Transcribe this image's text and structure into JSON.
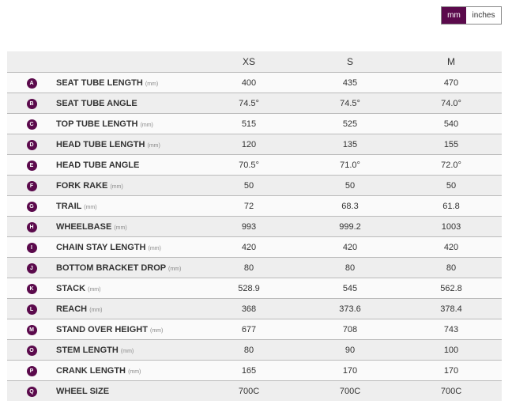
{
  "units": {
    "mm": "mm",
    "inches": "inches",
    "selected": "mm"
  },
  "accent": "#5b0a4c",
  "headers": [
    "XS",
    "S",
    "M"
  ],
  "rows": [
    {
      "letter": "A",
      "label": "SEAT TUBE LENGTH",
      "unit": "(mm)",
      "values": [
        "400",
        "435",
        "470"
      ]
    },
    {
      "letter": "B",
      "label": "SEAT TUBE ANGLE",
      "unit": "",
      "values": [
        "74.5°",
        "74.5°",
        "74.0°"
      ]
    },
    {
      "letter": "C",
      "label": "TOP TUBE LENGTH",
      "unit": "(mm)",
      "values": [
        "515",
        "525",
        "540"
      ]
    },
    {
      "letter": "D",
      "label": "HEAD TUBE LENGTH",
      "unit": "(mm)",
      "values": [
        "120",
        "135",
        "155"
      ]
    },
    {
      "letter": "E",
      "label": "HEAD TUBE ANGLE",
      "unit": "",
      "values": [
        "70.5°",
        "71.0°",
        "72.0°"
      ]
    },
    {
      "letter": "F",
      "label": "FORK RAKE",
      "unit": "(mm)",
      "values": [
        "50",
        "50",
        "50"
      ]
    },
    {
      "letter": "G",
      "label": "TRAIL",
      "unit": "(mm)",
      "values": [
        "72",
        "68.3",
        "61.8"
      ]
    },
    {
      "letter": "H",
      "label": "WHEELBASE",
      "unit": "(mm)",
      "values": [
        "993",
        "999.2",
        "1003"
      ]
    },
    {
      "letter": "I",
      "label": "CHAIN STAY LENGTH",
      "unit": "(mm)",
      "values": [
        "420",
        "420",
        "420"
      ]
    },
    {
      "letter": "J",
      "label": "BOTTOM BRACKET DROP",
      "unit": "(mm)",
      "values": [
        "80",
        "80",
        "80"
      ]
    },
    {
      "letter": "K",
      "label": "STACK",
      "unit": "(mm)",
      "values": [
        "528.9",
        "545",
        "562.8"
      ]
    },
    {
      "letter": "L",
      "label": "REACH",
      "unit": "(mm)",
      "values": [
        "368",
        "373.6",
        "378.4"
      ]
    },
    {
      "letter": "M",
      "label": "STAND OVER HEIGHT",
      "unit": "(mm)",
      "values": [
        "677",
        "708",
        "743"
      ]
    },
    {
      "letter": "O",
      "label": "STEM LENGTH",
      "unit": "(mm)",
      "values": [
        "80",
        "90",
        "100"
      ]
    },
    {
      "letter": "P",
      "label": "CRANK LENGTH",
      "unit": "(mm)",
      "values": [
        "165",
        "170",
        "170"
      ]
    },
    {
      "letter": "Q",
      "label": "WHEEL SIZE",
      "unit": "",
      "values": [
        "700C",
        "700C",
        "700C"
      ]
    }
  ]
}
